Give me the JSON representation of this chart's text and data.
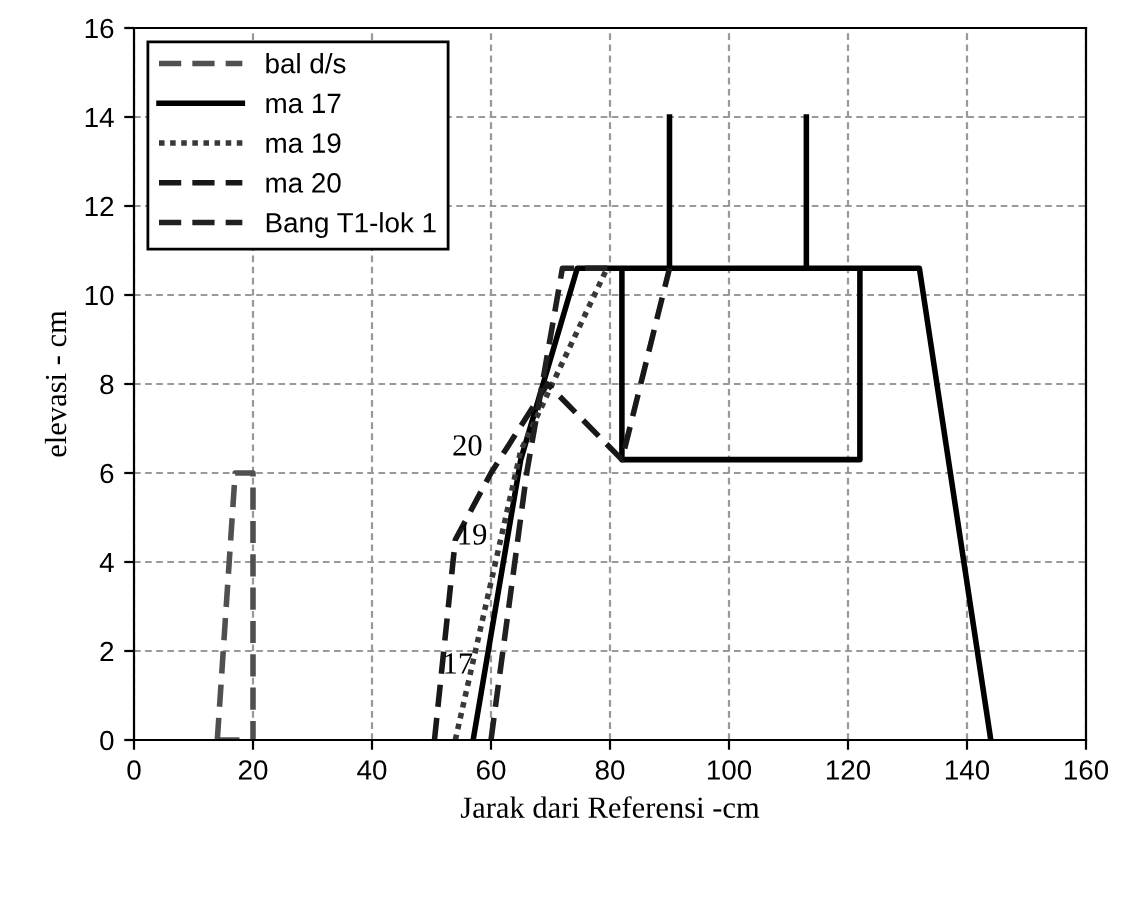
{
  "chart_data": {
    "type": "line",
    "xlabel": "Jarak dari Referensi -cm",
    "ylabel": "elevasi - cm",
    "xlim": [
      0,
      160
    ],
    "xticks": [
      0,
      20,
      40,
      60,
      80,
      100,
      120,
      140,
      160
    ],
    "ylim": [
      0,
      16
    ],
    "yticks": [
      0,
      2,
      4,
      6,
      8,
      10,
      12,
      14,
      16
    ],
    "grid": true,
    "legend": "top left",
    "marker": "none",
    "series": [
      {
        "name": "bal d/s",
        "color": "#505050",
        "line_style": "dashed",
        "x": [
          14,
          17,
          20,
          20,
          null,
          14,
          20
        ],
        "values": [
          0,
          6,
          6,
          0,
          null,
          0,
          0
        ]
      },
      {
        "name": "ma 17",
        "color": "#000000",
        "line_style": "solid",
        "x": [
          57,
          65,
          74.5,
          132,
          144,
          null,
          82,
          82,
          122,
          122,
          null,
          90,
          90,
          null,
          113,
          113
        ],
        "values": [
          0,
          6.3,
          10.6,
          10.6,
          0,
          null,
          10.6,
          6.3,
          6.3,
          10.6,
          null,
          10.6,
          14,
          null,
          10.6,
          14
        ]
      },
      {
        "name": "ma 19",
        "color": "#383838",
        "line_style": "dotted",
        "x": [
          54,
          65,
          79.5
        ],
        "values": [
          0,
          6.5,
          10.6
        ]
      },
      {
        "name": "ma 20",
        "color": "#181818",
        "line_style": "dashed",
        "x": [
          50.5,
          54,
          60,
          69.5,
          82,
          90
        ],
        "values": [
          0,
          4.5,
          6,
          8,
          6.3,
          10.6
        ]
      },
      {
        "name": "Bang T1-lok 1",
        "color": "#202020",
        "line_style": "dashed",
        "x": [
          60,
          66,
          72,
          80.7
        ],
        "values": [
          0,
          6,
          10.6,
          10.6
        ]
      }
    ],
    "annotations": [
      {
        "text": "20",
        "x": 60,
        "y": 6
      },
      {
        "text": "19",
        "x": 60.8,
        "y": 4
      },
      {
        "text": "17",
        "x": 58.4,
        "y": 1.1
      }
    ]
  }
}
